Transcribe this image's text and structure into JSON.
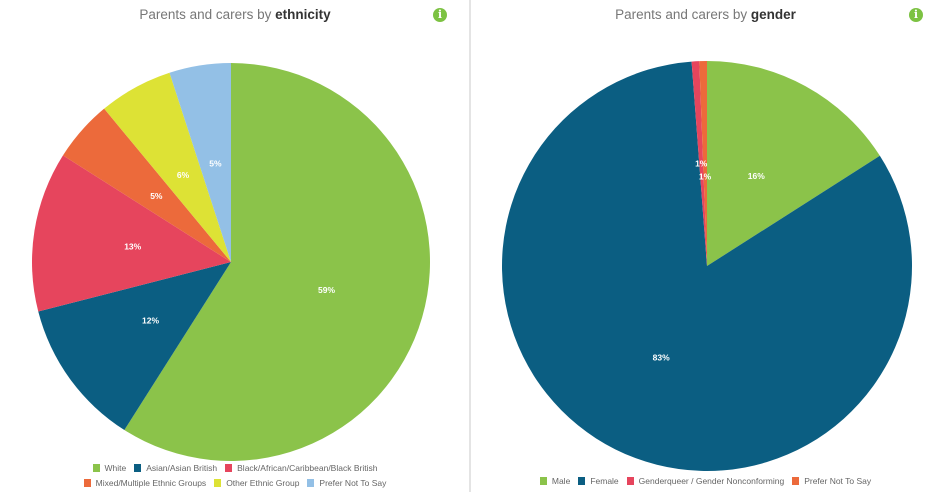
{
  "charts": [
    {
      "title_prefix": "Parents and carers by ",
      "title_bold": "ethnicity",
      "info_icon": "i"
    },
    {
      "title_prefix": "Parents and carers by ",
      "title_bold": "gender",
      "info_icon": "i"
    }
  ],
  "chart_data": [
    {
      "type": "pie",
      "title": "Parents and carers by ethnicity",
      "categories": [
        "White",
        "Asian/Asian British",
        "Black/African/Caribbean/Black British",
        "Mixed/Multiple Ethnic Groups",
        "Other Ethnic Group",
        "Prefer Not To Say"
      ],
      "values": [
        59,
        12,
        13,
        5,
        6,
        5
      ],
      "data_labels": [
        "59%",
        "12%",
        "13%",
        "5%",
        "6%",
        "5%"
      ],
      "colors": [
        "#8bc34a",
        "#0b5e82",
        "#e6455d",
        "#ec6a3b",
        "#dde235",
        "#93c0e6"
      ],
      "legend": "bottom"
    },
    {
      "type": "pie",
      "title": "Parents and carers by gender",
      "categories": [
        "Male",
        "Female",
        "Genderqueer / Gender Nonconforming",
        "Prefer Not To Say"
      ],
      "values": [
        16,
        83,
        0.6,
        0.6
      ],
      "data_labels": [
        "16%",
        "83%",
        "1%",
        "1%"
      ],
      "colors": [
        "#8bc34a",
        "#0b5e82",
        "#e6455d",
        "#ec6a3b"
      ],
      "legend": "bottom"
    }
  ]
}
